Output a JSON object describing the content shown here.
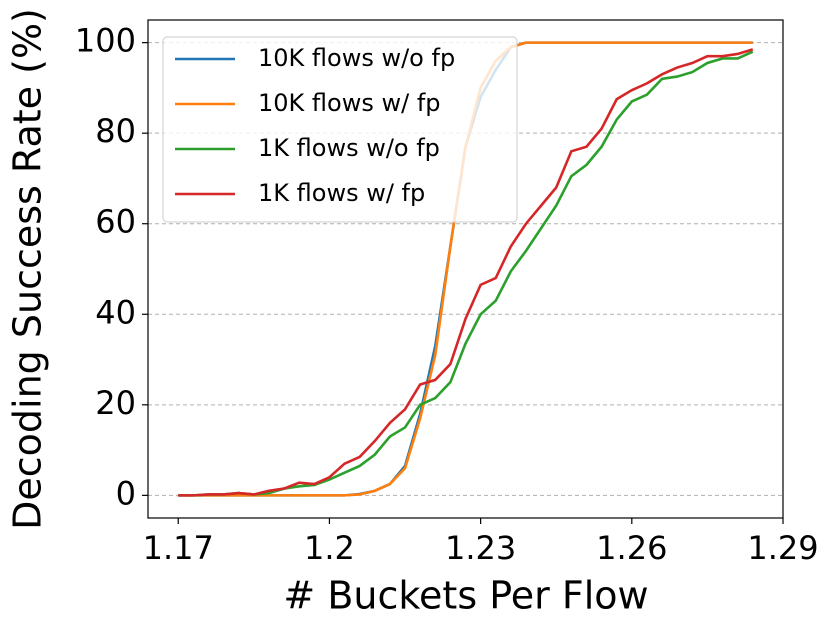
{
  "chart_data": {
    "type": "line",
    "xlabel": "# Buckets Per Flow",
    "ylabel": "Decoding Success Rate (%)",
    "x": [
      1.17,
      1.173,
      1.176,
      1.179,
      1.182,
      1.185,
      1.188,
      1.191,
      1.194,
      1.197,
      1.2,
      1.203,
      1.206,
      1.209,
      1.212,
      1.215,
      1.218,
      1.221,
      1.224,
      1.227,
      1.23,
      1.233,
      1.236,
      1.239,
      1.242,
      1.245,
      1.248,
      1.251,
      1.254,
      1.257,
      1.26,
      1.263,
      1.266,
      1.269,
      1.272,
      1.275,
      1.278,
      1.281,
      1.284
    ],
    "series": [
      {
        "name": "10K flows w/o fp",
        "color": "#1f77b4",
        "values": [
          0,
          0,
          0,
          0,
          0,
          0,
          0,
          0,
          0,
          0,
          0,
          0,
          0.3,
          1,
          2.5,
          6.5,
          18,
          33,
          55,
          77,
          88,
          94,
          99,
          100,
          100,
          100,
          100,
          100,
          100,
          100,
          100,
          100,
          100,
          100,
          100,
          100,
          100,
          100,
          100
        ]
      },
      {
        "name": "10K flows w/ fp",
        "color": "#ff7f0e",
        "values": [
          0,
          0,
          0,
          0,
          0,
          0,
          0,
          0,
          0,
          0,
          0,
          0,
          0.2,
          1,
          2.5,
          6,
          17,
          31,
          55,
          77,
          90,
          96,
          99,
          100,
          100,
          100,
          100,
          100,
          100,
          100,
          100,
          100,
          100,
          100,
          100,
          100,
          100,
          100,
          100
        ]
      },
      {
        "name": "1K flows w/o fp",
        "color": "#2ca02c",
        "values": [
          0,
          0,
          0.2,
          0.2,
          0.5,
          0.2,
          0.5,
          1.5,
          2,
          2.3,
          3.5,
          5,
          6.5,
          9,
          13,
          15,
          20,
          21.5,
          25,
          33.5,
          40,
          43,
          49.5,
          54,
          59,
          64,
          70.5,
          73,
          77,
          83,
          87,
          88.5,
          92,
          92.5,
          93.5,
          95.5,
          96.5,
          96.5,
          98
        ]
      },
      {
        "name": "1K flows w/ fp",
        "color": "#d62728",
        "values": [
          0,
          0,
          0.2,
          0.2,
          0.5,
          0.2,
          1,
          1.5,
          2.8,
          2.5,
          4,
          7,
          8.5,
          12,
          16,
          19,
          24.5,
          25.5,
          29,
          39,
          46.5,
          48,
          55,
          60,
          64,
          68,
          76,
          77,
          81,
          87.5,
          89.5,
          91,
          93,
          94.5,
          95.5,
          97,
          97,
          97.5,
          98.5
        ]
      }
    ],
    "xlim": [
      1.164,
      1.29
    ],
    "xticks": [
      1.17,
      1.2,
      1.23,
      1.26,
      1.29
    ],
    "ylim": [
      -5,
      105
    ],
    "yticks": [
      0,
      20,
      40,
      60,
      80,
      100
    ],
    "grid": true,
    "legend": "upper left"
  }
}
